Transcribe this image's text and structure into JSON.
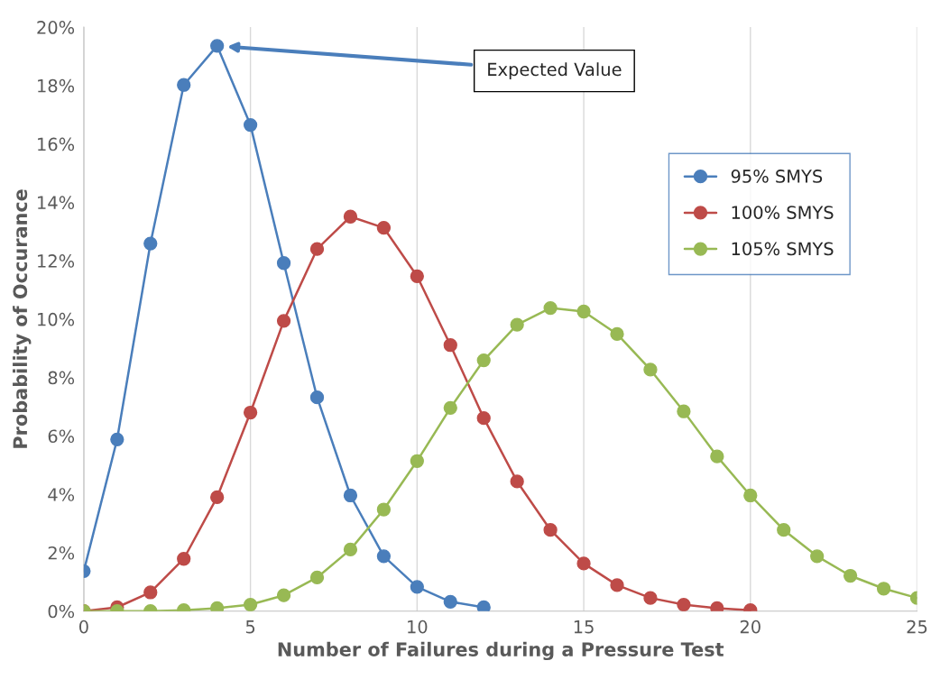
{
  "chart_data": {
    "type": "line",
    "xlabel": "Number of Failures during a Pressure Test",
    "ylabel": "Probability of Occurance",
    "xlim": [
      0,
      25
    ],
    "xticks": [
      0,
      5,
      10,
      15,
      20,
      25
    ],
    "ylim": [
      0,
      20
    ],
    "yticks": [
      {
        "value": 0,
        "label": "0%"
      },
      {
        "value": 2,
        "label": "2%"
      },
      {
        "value": 4,
        "label": "4%"
      },
      {
        "value": 6,
        "label": "6%"
      },
      {
        "value": 8,
        "label": "8%"
      },
      {
        "value": 10,
        "label": "10%"
      },
      {
        "value": 12,
        "label": "12%"
      },
      {
        "value": 14,
        "label": "14%"
      },
      {
        "value": 16,
        "label": "16%"
      },
      {
        "value": 18,
        "label": "18%"
      },
      {
        "value": 20,
        "label": "20%"
      }
    ],
    "grid": "x",
    "legend": "right",
    "marker": "circle",
    "line_style": "solid",
    "annotations": [
      "Expected Value"
    ],
    "series": [
      {
        "name": "95% SMYS",
        "color": "#4a7ebb",
        "x": [
          0,
          1,
          2,
          3,
          4,
          5,
          6,
          7,
          8,
          9,
          10,
          11,
          12
        ],
        "values": [
          1.37,
          5.88,
          12.59,
          18.02,
          19.36,
          16.65,
          11.92,
          7.32,
          3.96,
          1.88,
          0.83,
          0.32,
          0.13
        ]
      },
      {
        "name": "100% SMYS",
        "color": "#be4b48",
        "x": [
          0,
          1,
          2,
          3,
          4,
          5,
          6,
          7,
          8,
          9,
          10,
          11,
          12,
          13,
          14,
          15,
          16,
          17,
          18,
          19,
          20
        ],
        "values": [
          0.0,
          0.13,
          0.64,
          1.79,
          3.9,
          6.8,
          9.94,
          12.4,
          13.51,
          13.13,
          11.47,
          9.11,
          6.61,
          4.44,
          2.78,
          1.63,
          0.89,
          0.45,
          0.22,
          0.1,
          0.03
        ]
      },
      {
        "name": "105% SMYS",
        "color": "#98b954",
        "x": [
          0,
          1,
          2,
          3,
          4,
          5,
          6,
          7,
          8,
          9,
          10,
          11,
          12,
          13,
          14,
          15,
          16,
          17,
          18,
          19,
          20,
          21,
          22,
          23,
          24,
          25
        ],
        "values": [
          0.0,
          0.0,
          0.0,
          0.03,
          0.1,
          0.22,
          0.54,
          1.15,
          2.11,
          3.48,
          5.14,
          6.96,
          8.59,
          9.81,
          10.38,
          10.26,
          9.49,
          8.27,
          6.84,
          5.3,
          3.96,
          2.78,
          1.88,
          1.21,
          0.77,
          0.45
        ]
      }
    ]
  }
}
